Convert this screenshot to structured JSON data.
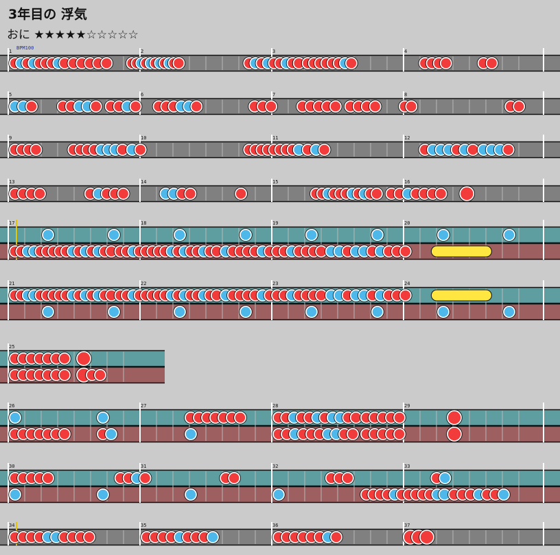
{
  "song": {
    "title": "3年目の 浮気",
    "course": "おに",
    "stars_text": "★★★★★☆☆☆☆☆",
    "level": 5,
    "max_level": 10
  },
  "bpm_label": "BPM100",
  "colors": {
    "background": "#cbcbcb",
    "lane_single": "#808080",
    "lane_player1": "#5f9ea0",
    "lane_player2": "#9e5f61",
    "don": "#f23c3c",
    "ka": "#4fb8ea",
    "drumroll": "#ffe640",
    "gogo_line": "#e5c400"
  },
  "chart_data": {
    "type": "taiko-score",
    "measures_per_row": 4,
    "rows": [
      {
        "kind": "single",
        "measures": [
          "1",
          "2",
          "3",
          "4"
        ],
        "notes": {
          "a": "dkdkdddkd ddddd. ddkdkdkdkdd. ........ dkdkddkdd ddddddkd. ........ dddd.... dd"
        }
      },
      {
        "kind": "single",
        "measures": [
          "5",
          "6",
          "7",
          "8"
        ],
        "notes": {
          "a": "kkd ddkkd ddkd dddkkd ........ ddd ddddd dddd. .dd.... ........ ..dd"
        }
      },
      {
        "kind": "single",
        "measures": [
          "9",
          "10",
          "11",
          "12"
        ],
        "notes": {
          "a": "dddd.... ddddkkkd kd ...... ddddddddk dkd ....... dkkkdkd kkkd"
        }
      },
      {
        "kind": "single",
        "measures": [
          "13",
          "14",
          "15",
          "16"
        ],
        "notes": {
          "a": "dddd.... dkddd kkdd d.... ddkdddkdkdd. ddkdddd D"
        }
      },
      {
        "kind": "double",
        "measures": [
          "17",
          "18",
          "19",
          "20"
        ],
        "gogo_start": true,
        "notes": {
          "p1": ". k . k . k . k . k . k . k . k",
          "p2": "ddkkdddddkdkdkdd ddkdddddkdkddkdd kddddkdddkdddd kkdkkdkddd R"
        }
      },
      {
        "kind": "double",
        "measures": [
          "21",
          "22",
          "23",
          "24"
        ],
        "notes": {
          "p1": "ddkkdddddkdkdkdd ddkdddddkdkddkdd kddddkdddkdddd kkdkkdkddd R",
          "p2": ". k . k . k . k . k . k . k . k"
        }
      },
      {
        "kind": "double_short",
        "measures": [
          "25"
        ],
        "notes": {
          "p1": "ddddddd D",
          "p2": "ddddddd Ddd"
        }
      },
      {
        "kind": "double",
        "measures": [
          "26",
          "27",
          "28",
          "29"
        ],
        "notes": {
          "p1": "k k ddddddd ddkddkdkkdd ddddd D",
          "p2": "ddddddd dk k ddkdddkkdd ddddd D"
        }
      },
      {
        "kind": "double",
        "measures": [
          "30",
          "31",
          "32",
          "33"
        ],
        "notes": {
          "p1": "ddddd ddkd dd ddd dk",
          "p2": "k k k k ddddkdddddkk dddkddk"
        }
      },
      {
        "kind": "single",
        "measures": [
          "34",
          "35",
          "36",
          "37"
        ],
        "gogo_start": true,
        "notes": {
          "a": "ddddkkdddd ddddkdddk ddddddkd DDD"
        }
      }
    ]
  }
}
